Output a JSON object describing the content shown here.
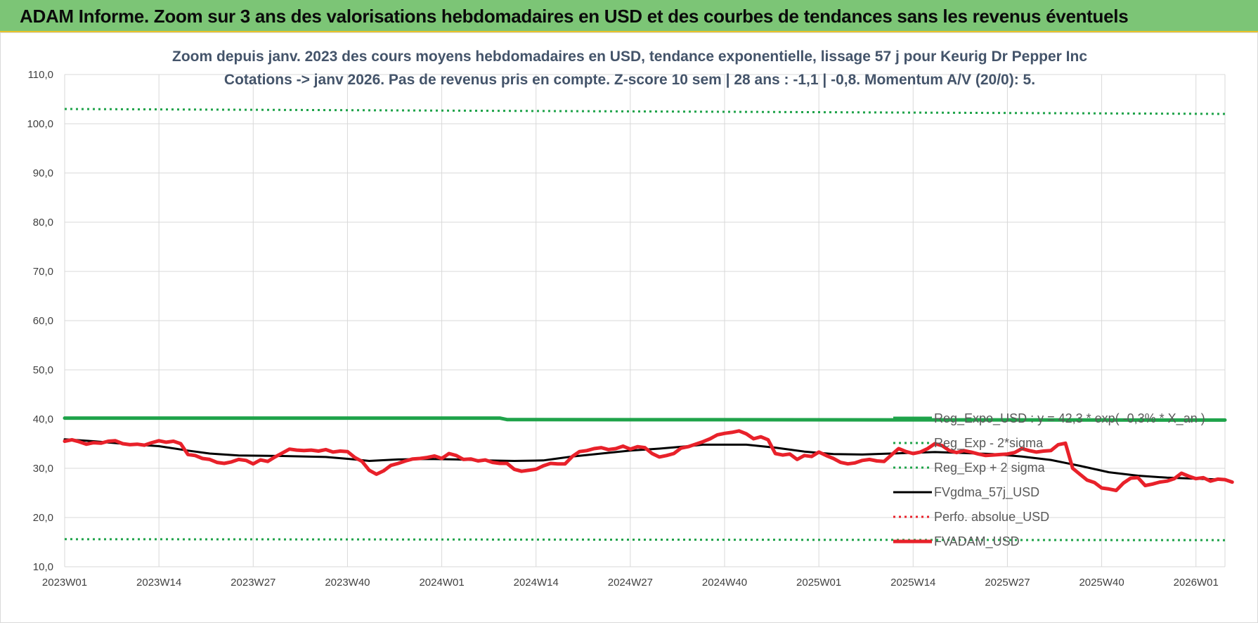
{
  "header": {
    "title": "ADAM Informe. Zoom sur 3 ans des valorisations hebdomadaires en USD et des courbes de tendances sans les revenus éventuels"
  },
  "chart_data": {
    "type": "line",
    "title_line1": "Zoom depuis janv. 2023 des cours moyens hebdomadaires en USD, tendance exponentielle, lissage 57 j pour Keurig Dr Pepper Inc",
    "title_line2": "Cotations -> janv 2026. Pas de revenus pris en compte. Z-score 10 sem | 28 ans : -1,1 | -0,8. Momentum A/V (20/0): 5.",
    "ylim": [
      10,
      110
    ],
    "yticks": [
      "10,0",
      "20,0",
      "30,0",
      "40,0",
      "50,0",
      "60,0",
      "70,0",
      "80,0",
      "90,0",
      "100,0",
      "110,0"
    ],
    "xlim": [
      0,
      160
    ],
    "xticks": [
      {
        "pos": 0,
        "label": "2023W01"
      },
      {
        "pos": 13,
        "label": "2023W14"
      },
      {
        "pos": 26,
        "label": "2023W27"
      },
      {
        "pos": 39,
        "label": "2023W40"
      },
      {
        "pos": 52,
        "label": "2024W01"
      },
      {
        "pos": 65,
        "label": "2024W14"
      },
      {
        "pos": 78,
        "label": "2024W27"
      },
      {
        "pos": 91,
        "label": "2024W40"
      },
      {
        "pos": 104,
        "label": "2025W01"
      },
      {
        "pos": 117,
        "label": "2025W14"
      },
      {
        "pos": 130,
        "label": "2025W27"
      },
      {
        "pos": 143,
        "label": "2025W40"
      },
      {
        "pos": 156,
        "label": "2026W01"
      }
    ],
    "grid": true,
    "legend_position": "right",
    "series": [
      {
        "name": "Reg_Expo_USD : y = 42,3 * exp( -0,3% * X_an )",
        "color": "#1fa34a",
        "style": "solid-thick",
        "points": [
          [
            0,
            40.2
          ],
          [
            60,
            40.2
          ],
          [
            61,
            39.9
          ],
          [
            160,
            39.8
          ]
        ]
      },
      {
        "name": "Reg_Exp - 2*sigma",
        "color": "#1fa34a",
        "style": "dotted",
        "points": [
          [
            0,
            15.6
          ],
          [
            160,
            15.4
          ]
        ]
      },
      {
        "name": "Reg_Exp + 2 sigma",
        "color": "#1fa34a",
        "style": "dotted",
        "points": [
          [
            0,
            103.0
          ],
          [
            160,
            102.0
          ]
        ]
      },
      {
        "name": "FVgdma_57j_USD",
        "color": "#000000",
        "style": "solid",
        "points": [
          [
            0,
            35.9
          ],
          [
            4,
            35.5
          ],
          [
            8,
            35.0
          ],
          [
            13,
            34.5
          ],
          [
            17,
            33.6
          ],
          [
            20,
            33.0
          ],
          [
            24,
            32.6
          ],
          [
            30,
            32.5
          ],
          [
            36,
            32.3
          ],
          [
            40,
            31.8
          ],
          [
            42,
            31.5
          ],
          [
            46,
            31.8
          ],
          [
            50,
            31.9
          ],
          [
            54,
            31.8
          ],
          [
            58,
            31.6
          ],
          [
            62,
            31.5
          ],
          [
            66,
            31.6
          ],
          [
            68,
            32.0
          ],
          [
            70,
            32.4
          ],
          [
            74,
            33.0
          ],
          [
            78,
            33.6
          ],
          [
            82,
            34.0
          ],
          [
            86,
            34.5
          ],
          [
            88,
            34.8
          ],
          [
            94,
            34.8
          ],
          [
            98,
            34.2
          ],
          [
            102,
            33.4
          ],
          [
            106,
            32.9
          ],
          [
            110,
            32.8
          ],
          [
            116,
            33.1
          ],
          [
            120,
            33.3
          ],
          [
            124,
            33.1
          ],
          [
            128,
            32.9
          ],
          [
            132,
            32.4
          ],
          [
            136,
            31.7
          ],
          [
            140,
            30.5
          ],
          [
            144,
            29.2
          ],
          [
            148,
            28.5
          ],
          [
            152,
            28.1
          ],
          [
            156,
            27.9
          ],
          [
            160,
            27.7
          ]
        ]
      },
      {
        "name": "Perfo. absolue_USD",
        "color": "#e8212a",
        "style": "dotted",
        "points": []
      },
      {
        "name": "FVADAM_USD",
        "color": "#e8212a",
        "style": "solid-thick",
        "points": [
          [
            0,
            35.5
          ],
          [
            1,
            35.8
          ],
          [
            2,
            35.4
          ],
          [
            3,
            34.9
          ],
          [
            4,
            35.2
          ],
          [
            5,
            35.1
          ],
          [
            6,
            35.5
          ],
          [
            7,
            35.6
          ],
          [
            8,
            35.0
          ],
          [
            9,
            34.8
          ],
          [
            10,
            34.9
          ],
          [
            11,
            34.7
          ],
          [
            12,
            35.2
          ],
          [
            13,
            35.6
          ],
          [
            14,
            35.3
          ],
          [
            15,
            35.5
          ],
          [
            16,
            35.0
          ],
          [
            17,
            32.8
          ],
          [
            18,
            32.6
          ],
          [
            19,
            32.0
          ],
          [
            20,
            31.8
          ],
          [
            21,
            31.2
          ],
          [
            22,
            31.0
          ],
          [
            23,
            31.3
          ],
          [
            24,
            31.8
          ],
          [
            25,
            31.6
          ],
          [
            26,
            30.9
          ],
          [
            27,
            31.7
          ],
          [
            28,
            31.4
          ],
          [
            29,
            32.3
          ],
          [
            30,
            33.1
          ],
          [
            31,
            33.9
          ],
          [
            32,
            33.7
          ],
          [
            33,
            33.6
          ],
          [
            34,
            33.7
          ],
          [
            35,
            33.5
          ],
          [
            36,
            33.8
          ],
          [
            37,
            33.3
          ],
          [
            38,
            33.5
          ],
          [
            39,
            33.4
          ],
          [
            40,
            32.2
          ],
          [
            41,
            31.4
          ],
          [
            42,
            29.6
          ],
          [
            43,
            28.8
          ],
          [
            44,
            29.5
          ],
          [
            45,
            30.6
          ],
          [
            46,
            31.0
          ],
          [
            47,
            31.5
          ],
          [
            48,
            31.9
          ],
          [
            49,
            32.0
          ],
          [
            50,
            32.2
          ],
          [
            51,
            32.5
          ],
          [
            52,
            32.0
          ],
          [
            53,
            33.0
          ],
          [
            54,
            32.6
          ],
          [
            55,
            31.8
          ],
          [
            56,
            31.9
          ],
          [
            57,
            31.5
          ],
          [
            58,
            31.7
          ],
          [
            59,
            31.2
          ],
          [
            60,
            31.0
          ],
          [
            61,
            31.0
          ],
          [
            62,
            29.8
          ],
          [
            63,
            29.4
          ],
          [
            64,
            29.6
          ],
          [
            65,
            29.8
          ],
          [
            66,
            30.5
          ],
          [
            67,
            31.0
          ],
          [
            68,
            30.9
          ],
          [
            69,
            30.9
          ],
          [
            70,
            32.4
          ],
          [
            71,
            33.4
          ],
          [
            72,
            33.6
          ],
          [
            73,
            34.0
          ],
          [
            74,
            34.2
          ],
          [
            75,
            33.8
          ],
          [
            76,
            34.0
          ],
          [
            77,
            34.5
          ],
          [
            78,
            33.9
          ],
          [
            79,
            34.4
          ],
          [
            80,
            34.2
          ],
          [
            81,
            33.0
          ],
          [
            82,
            32.3
          ],
          [
            83,
            32.6
          ],
          [
            84,
            33.0
          ],
          [
            85,
            34.1
          ],
          [
            86,
            34.4
          ],
          [
            87,
            34.9
          ],
          [
            88,
            35.4
          ],
          [
            89,
            36.0
          ],
          [
            90,
            36.8
          ],
          [
            91,
            37.1
          ],
          [
            92,
            37.3
          ],
          [
            93,
            37.6
          ],
          [
            94,
            37.0
          ],
          [
            95,
            36.0
          ],
          [
            96,
            36.4
          ],
          [
            97,
            35.8
          ],
          [
            98,
            33.0
          ],
          [
            99,
            32.7
          ],
          [
            100,
            32.9
          ],
          [
            101,
            31.8
          ],
          [
            102,
            32.6
          ],
          [
            103,
            32.4
          ],
          [
            104,
            33.3
          ],
          [
            105,
            32.6
          ],
          [
            106,
            32.0
          ],
          [
            107,
            31.2
          ],
          [
            108,
            30.9
          ],
          [
            109,
            31.1
          ],
          [
            110,
            31.6
          ],
          [
            111,
            31.8
          ],
          [
            112,
            31.5
          ],
          [
            113,
            31.4
          ],
          [
            114,
            32.7
          ],
          [
            115,
            34.0
          ],
          [
            116,
            33.4
          ],
          [
            117,
            33.0
          ],
          [
            118,
            33.3
          ],
          [
            119,
            34.0
          ],
          [
            120,
            35.0
          ],
          [
            121,
            34.6
          ],
          [
            122,
            33.6
          ],
          [
            123,
            33.2
          ],
          [
            124,
            33.6
          ],
          [
            125,
            33.3
          ],
          [
            126,
            32.9
          ],
          [
            127,
            32.6
          ],
          [
            128,
            32.7
          ],
          [
            129,
            32.8
          ],
          [
            130,
            32.9
          ],
          [
            131,
            33.2
          ],
          [
            132,
            34.0
          ],
          [
            133,
            33.6
          ],
          [
            134,
            33.3
          ],
          [
            135,
            33.5
          ],
          [
            136,
            33.6
          ],
          [
            137,
            34.8
          ],
          [
            138,
            35.1
          ],
          [
            139,
            30.0
          ],
          [
            140,
            28.8
          ],
          [
            141,
            27.6
          ],
          [
            142,
            27.1
          ],
          [
            143,
            26.0
          ],
          [
            144,
            25.8
          ],
          [
            145,
            25.5
          ],
          [
            146,
            27.0
          ],
          [
            147,
            28.0
          ],
          [
            148,
            28.1
          ],
          [
            149,
            26.5
          ],
          [
            150,
            26.8
          ],
          [
            151,
            27.2
          ],
          [
            152,
            27.4
          ],
          [
            153,
            27.9
          ],
          [
            154,
            29.0
          ],
          [
            155,
            28.4
          ],
          [
            156,
            27.9
          ],
          [
            157,
            28.1
          ],
          [
            158,
            27.4
          ],
          [
            159,
            27.8
          ],
          [
            160,
            27.7
          ],
          [
            161,
            27.2
          ]
        ]
      }
    ]
  }
}
